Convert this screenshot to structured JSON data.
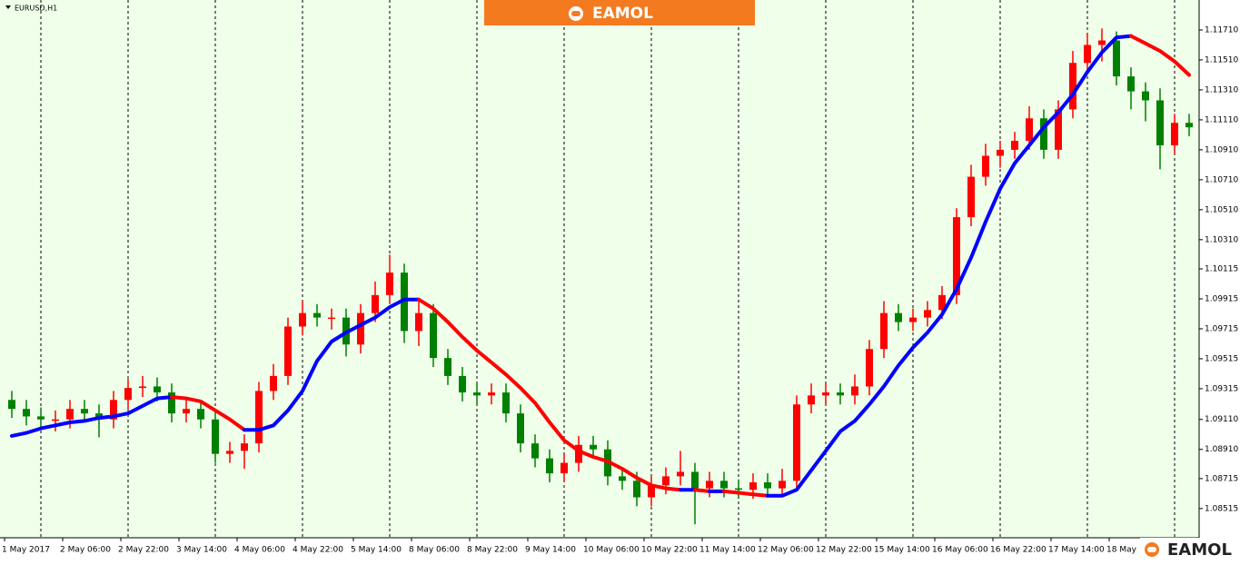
{
  "symbol": "EURUSD,H1",
  "brand": "EAMOL",
  "chart_data": {
    "type": "candlestick",
    "categories": [
      "1 May 2017",
      null,
      null,
      null,
      "2 May 06:00",
      null,
      null,
      null,
      "2 May 22:00",
      null,
      null,
      null,
      "3 May 14:00",
      null,
      null,
      null,
      "4 May 06:00",
      null,
      null,
      null,
      "4 May 22:00",
      null,
      null,
      null,
      "5 May 14:00",
      null,
      null,
      null,
      "8 May 06:00",
      null,
      null,
      null,
      "8 May 22:00",
      null,
      null,
      null,
      "9 May 14:00",
      null,
      null,
      null,
      "10 May 06:00",
      null,
      null,
      null,
      "10 May 22:00",
      null,
      null,
      null,
      "11 May 14:00",
      null,
      null,
      null,
      "12 May 06:00",
      null,
      null,
      null,
      "12 May 22:00",
      null,
      null,
      null,
      "15 May 14:00",
      null,
      null,
      null,
      "16 May 06:00",
      null,
      null,
      null,
      "16 May 22:00",
      null,
      null,
      null,
      "17 May 14:00",
      null,
      null,
      null,
      "18 May",
      null,
      null,
      null,
      null,
      null
    ],
    "open": [
      1.0924,
      1.0918,
      1.0913,
      1.0911,
      1.0911,
      1.0918,
      1.0915,
      1.0911,
      1.0924,
      1.0932,
      1.0933,
      1.0929,
      1.0915,
      1.0918,
      1.0911,
      1.0888,
      1.089,
      1.0895,
      1.093,
      1.094,
      1.0973,
      1.0982,
      1.0979,
      1.0979,
      1.0961,
      1.0982,
      1.0994,
      1.1009,
      1.097,
      1.0982,
      1.0952,
      1.094,
      1.0929,
      1.0927,
      1.0929,
      1.0915,
      1.0895,
      1.0885,
      1.0875,
      1.0882,
      1.0894,
      1.0891,
      1.0873,
      1.087,
      1.0859,
      1.0867,
      1.0873,
      1.0876,
      1.0865,
      1.087,
      1.0865,
      1.0864,
      1.0869,
      1.0865,
      1.087,
      1.0921,
      1.0927,
      1.0929,
      1.0927,
      1.0933,
      1.0958,
      1.0982,
      1.0976,
      1.0979,
      1.0984,
      1.0994,
      1.1046,
      1.1073,
      1.1087,
      1.1091,
      1.1097,
      1.1112,
      1.1091,
      1.1118,
      1.1149,
      1.1161,
      1.1164,
      1.114,
      1.113,
      1.1124,
      1.1094,
      1.1109
    ],
    "high": [
      1.093,
      1.0924,
      1.0919,
      1.0917,
      1.0924,
      1.0924,
      1.0921,
      1.093,
      1.0938,
      1.094,
      1.0939,
      1.0935,
      1.0924,
      1.0924,
      1.0917,
      1.0896,
      1.0901,
      1.0936,
      1.0948,
      1.0979,
      1.099,
      1.0988,
      1.0985,
      1.0985,
      1.0988,
      1.1003,
      1.1021,
      1.1015,
      1.0992,
      1.0988,
      1.0958,
      1.0946,
      1.0935,
      1.0935,
      1.0935,
      1.0921,
      1.0901,
      1.0891,
      1.0888,
      1.09,
      1.09,
      1.0897,
      1.0879,
      1.0876,
      1.0873,
      1.0879,
      1.089,
      1.0882,
      1.0876,
      1.0876,
      1.0871,
      1.0875,
      1.0875,
      1.0878,
      1.0927,
      1.0935,
      1.0935,
      1.0935,
      1.0941,
      1.0964,
      1.099,
      1.0988,
      1.0985,
      1.099,
      1.1,
      1.1052,
      1.1081,
      1.1095,
      1.1097,
      1.1103,
      1.112,
      1.1118,
      1.1124,
      1.1157,
      1.1169,
      1.1172,
      1.117,
      1.1146,
      1.1136,
      1.1132,
      1.1115,
      1.1115
    ],
    "low": [
      1.0912,
      1.0907,
      1.0905,
      1.0903,
      1.0905,
      1.0909,
      1.0899,
      1.0905,
      1.0918,
      1.0926,
      1.0923,
      1.0909,
      1.0909,
      1.0905,
      1.0882,
      1.0882,
      1.0878,
      1.0889,
      1.0924,
      1.0934,
      1.0967,
      1.0973,
      1.0971,
      1.0953,
      1.0955,
      1.0976,
      1.0988,
      1.0962,
      1.096,
      1.0946,
      1.0934,
      1.0923,
      1.0921,
      1.0921,
      1.0909,
      1.0889,
      1.0879,
      1.0869,
      1.0869,
      1.0876,
      1.0885,
      1.0867,
      1.0864,
      1.0853,
      1.0853,
      1.0861,
      1.0867,
      1.0841,
      1.0859,
      1.0859,
      1.0858,
      1.0858,
      1.0859,
      1.0859,
      1.0864,
      1.0915,
      1.0921,
      1.0921,
      1.0921,
      1.0927,
      1.0952,
      1.097,
      1.097,
      1.0973,
      1.0978,
      1.0988,
      1.104,
      1.1067,
      1.1079,
      1.1085,
      1.1091,
      1.1085,
      1.1085,
      1.1112,
      1.1143,
      1.115,
      1.1134,
      1.1118,
      1.111,
      1.1078,
      1.1088,
      1.11
    ],
    "close": [
      1.0918,
      1.0913,
      1.0911,
      1.0911,
      1.0918,
      1.0915,
      1.0911,
      1.0924,
      1.0932,
      1.0933,
      1.0929,
      1.0915,
      1.0918,
      1.0911,
      1.0888,
      1.089,
      1.0895,
      1.093,
      1.094,
      1.0973,
      1.0982,
      1.0979,
      1.0979,
      1.0961,
      1.0982,
      1.0994,
      1.1009,
      1.097,
      1.0982,
      1.0952,
      1.094,
      1.0929,
      1.0927,
      1.0929,
      1.0915,
      1.0895,
      1.0885,
      1.0875,
      1.0882,
      1.0894,
      1.0891,
      1.0873,
      1.087,
      1.0859,
      1.0867,
      1.0873,
      1.0876,
      1.0865,
      1.087,
      1.0865,
      1.0864,
      1.0869,
      1.0865,
      1.087,
      1.0921,
      1.0927,
      1.0929,
      1.0927,
      1.0933,
      1.0958,
      1.0982,
      1.0976,
      1.0979,
      1.0984,
      1.0994,
      1.1046,
      1.1073,
      1.1087,
      1.1091,
      1.1097,
      1.1112,
      1.1091,
      1.1118,
      1.1149,
      1.1161,
      1.1164,
      1.114,
      1.113,
      1.1124,
      1.1094,
      1.1109,
      1.1106
    ],
    "up_color": "#ff0000",
    "down_color": "#008000",
    "moving_average": {
      "up_color": "#0000ff",
      "down_color": "#ff0000",
      "values": [
        1.09,
        1.0902,
        1.0905,
        1.0907,
        1.0909,
        1.091,
        1.0912,
        1.0913,
        1.0915,
        1.092,
        1.0925,
        1.0926,
        1.0925,
        1.0923,
        1.0917,
        1.0911,
        1.0904,
        1.0904,
        1.0907,
        1.0917,
        1.093,
        1.095,
        1.0963,
        1.0969,
        1.0974,
        1.0979,
        1.0986,
        1.0991,
        1.0991,
        1.0985,
        1.0976,
        1.0966,
        1.0957,
        1.0949,
        1.0941,
        1.0932,
        1.0922,
        1.0909,
        1.0897,
        1.089,
        1.0886,
        1.0883,
        1.0878,
        1.0872,
        1.0867,
        1.0865,
        1.0864,
        1.0864,
        1.0863,
        1.0863,
        1.0862,
        1.0861,
        1.086,
        1.086,
        1.0864,
        1.0877,
        1.089,
        1.0903,
        1.091,
        1.0921,
        1.0933,
        1.0947,
        1.0959,
        1.0969,
        1.0981,
        1.0998,
        1.1019,
        1.1043,
        1.1065,
        1.1082,
        1.1094,
        1.1106,
        1.1116,
        1.1128,
        1.1143,
        1.1156,
        1.1166,
        1.1167,
        1.1162,
        1.1157,
        1.115,
        1.1141
      ]
    },
    "ylim": [
      1.0832,
      1.1191
    ],
    "yticks": [
      1.08515,
      1.08715,
      {
        "value": 1.0891,
        "label": "1.08910"
      },
      {
        "value": 1.0911,
        "label": "1.09110"
      },
      1.09315,
      1.09515,
      1.09715,
      1.09915,
      1.10115,
      {
        "value": 1.1031,
        "label": "1.10310"
      },
      {
        "value": 1.1051,
        "label": "1.10510"
      },
      {
        "value": 1.1071,
        "label": "1.10710"
      },
      {
        "value": 1.1091,
        "label": "1.10910"
      },
      {
        "value": 1.1111,
        "label": "1.11110"
      },
      {
        "value": 1.1131,
        "label": "1.11310"
      },
      {
        "value": 1.1151,
        "label": "1.11510"
      },
      {
        "value": 1.1171,
        "label": "1.11710"
      }
    ],
    "background": "#efffea"
  }
}
